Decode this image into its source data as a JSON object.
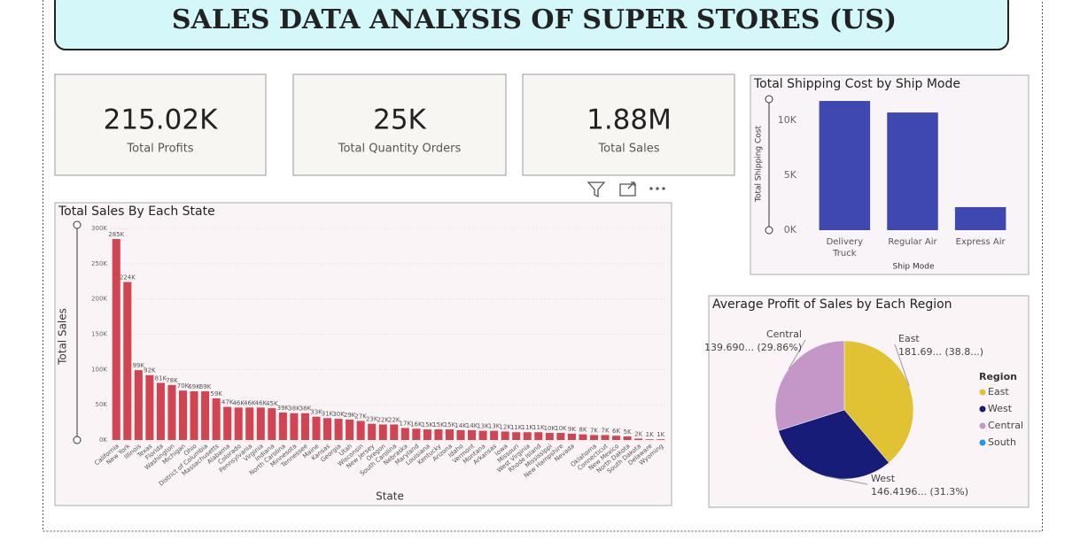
{
  "header": {
    "title": "SALES DATA ANALYSIS OF SUPER STORES (US)"
  },
  "cards": [
    {
      "value": "215.02K",
      "label": "Total Profits"
    },
    {
      "value": "25K",
      "label": "Total Quantity Orders"
    },
    {
      "value": "1.88M",
      "label": "Total Sales"
    }
  ],
  "chart_data": [
    {
      "type": "bar",
      "title": "Total Sales By Each State",
      "x_label": "State",
      "y_label": "Total Sales",
      "color": "#d14452",
      "grid": true,
      "categories": [
        "California",
        "New York",
        "Illinois",
        "Texas",
        "Florida",
        "Washington",
        "Michigan",
        "Ohio",
        "District of Columbia",
        "Massachusetts",
        "Alabama",
        "Colorado",
        "Pennsylvania",
        "Virginia",
        "Indiana",
        "North Carolina",
        "Minnesota",
        "Tennessee",
        "Maine",
        "Kansas",
        "Georgia",
        "Utah",
        "Wisconsin",
        "New Jersey",
        "Oregon",
        "South Carolina",
        "Nebraska",
        "Maryland",
        "Louisiana",
        "Kentucky",
        "Arizona",
        "Idaho",
        "Vermont",
        "Montana",
        "Arkansas",
        "Iowa",
        "Missouri",
        "West Virginia",
        "Rhode Island",
        "Mississippi",
        "New Hampshire",
        "Nevada",
        null,
        "Oklahoma",
        "Connecticut",
        "New Mexico",
        "North Dakota",
        "South Dakota",
        "Delaware",
        "Wyoming"
      ],
      "values": [
        285000,
        224000,
        99000,
        92000,
        81000,
        78000,
        70000,
        69000,
        69000,
        59000,
        47000,
        46000,
        46000,
        46000,
        45000,
        39000,
        38000,
        38000,
        33000,
        31000,
        30000,
        29000,
        27000,
        23000,
        22000,
        22000,
        17000,
        16000,
        15000,
        15000,
        15000,
        14000,
        14000,
        13000,
        13000,
        12000,
        11000,
        11000,
        11000,
        10000,
        10000,
        9000,
        8000,
        7000,
        7000,
        6000,
        5000,
        2000,
        1000,
        1000
      ],
      "value_labels": [
        "285K",
        "224K",
        "99K",
        "92K",
        "81K",
        "78K",
        "70K",
        "69K",
        "69K",
        "59K",
        "47K",
        "46K",
        "46K",
        "46K",
        "45K",
        "39K",
        "38K",
        "38K",
        "33K",
        "31K",
        "30K",
        "29K",
        "27K",
        "23K",
        "22K",
        "22K",
        "17K",
        "16K",
        "15K",
        "15K",
        "15K",
        "14K",
        "14K",
        "13K",
        "13K",
        "12K",
        "11K",
        "11K",
        "11K",
        "10K",
        "10K",
        "9K",
        "8K",
        "7K",
        "7K",
        "6K",
        "5K",
        "2K",
        "1K",
        "1K"
      ],
      "ylim": [
        0,
        300000
      ],
      "yticks": [
        {
          "value": 0,
          "label": "0K"
        },
        {
          "value": 50000,
          "label": "50K"
        },
        {
          "value": 100000,
          "label": "100K"
        },
        {
          "value": 150000,
          "label": "150K"
        },
        {
          "value": 200000,
          "label": "200K"
        },
        {
          "value": 250000,
          "label": "250K"
        },
        {
          "value": 300000,
          "label": "300K"
        }
      ]
    },
    {
      "type": "bar",
      "title": "Total Shipping Cost by Ship Mode",
      "x_label": "Ship Mode",
      "y_label": "Total Shipping Cost",
      "color": "#3f48b0",
      "grid": false,
      "categories": [
        "Delivery Truck",
        "Regular Air",
        "Express Air"
      ],
      "values": [
        11770,
        10720,
        2100
      ],
      "ylim": [
        0,
        12500
      ],
      "yticks": [
        {
          "value": 0,
          "label": "0K"
        },
        {
          "value": 5000,
          "label": "5K"
        },
        {
          "value": 10000,
          "label": "10K"
        }
      ]
    },
    {
      "type": "pie",
      "title": "Average Profit of Sales by Each Region",
      "legend_title": "Region",
      "legend": "right",
      "categories": [
        "East",
        "West",
        "Central",
        "South"
      ],
      "values": [
        181.69,
        146.4196,
        139.69,
        null
      ],
      "value_labels": [
        "181.69... (38.8...)",
        "146.4196... (31.3%)",
        "139.690... (29.86%)",
        null
      ],
      "colors": [
        "#e1c232",
        "#161c78",
        "#c497c8",
        "#2196f3"
      ]
    }
  ]
}
